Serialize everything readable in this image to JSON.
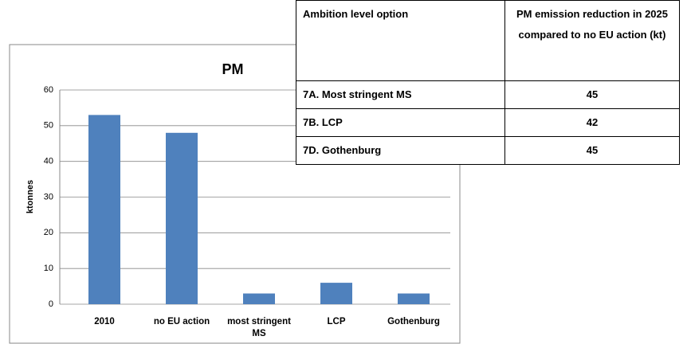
{
  "chart_data": {
    "type": "bar",
    "title": "PM",
    "y_label": "ktonnes",
    "categories": [
      "2010",
      "no EU action",
      "most stringent MS",
      "LCP",
      "Gothenburg"
    ],
    "values": [
      53,
      48,
      3,
      6,
      3
    ],
    "color": "#4f81bd",
    "ylim": [
      0,
      60
    ],
    "yticks": [
      0,
      10,
      20,
      30,
      40,
      50,
      60
    ],
    "grid": true
  },
  "table": {
    "header": [
      "Ambition level option",
      "PM emission reduction in 2025 compared to no EU action (kt)"
    ],
    "rows": [
      [
        "7A. Most stringent MS",
        45
      ],
      [
        "7B. LCP",
        42
      ],
      [
        "7D. Gothenburg",
        45
      ]
    ]
  }
}
